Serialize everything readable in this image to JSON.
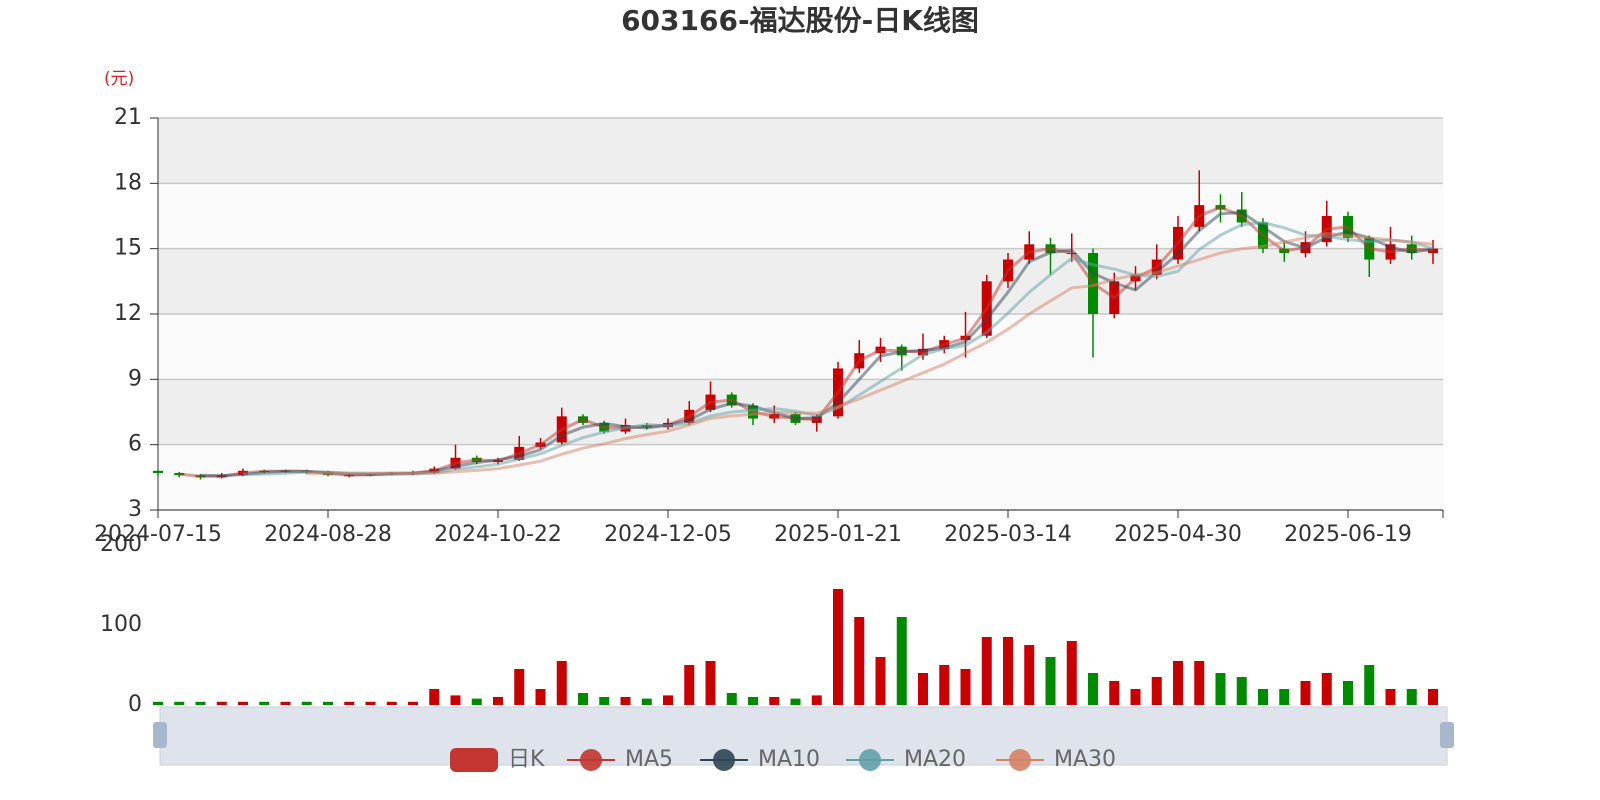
{
  "chart_data": {
    "type": "candlestick",
    "title": "603166-福达股份-日K线图",
    "y_unit": "(元)",
    "categories": [
      "2024-07-15",
      null,
      null,
      null,
      null,
      null,
      null,
      null,
      "2024-08-28",
      null,
      null,
      null,
      null,
      null,
      null,
      null,
      "2024-10-22",
      null,
      null,
      null,
      null,
      null,
      null,
      null,
      "2024-12-05",
      null,
      null,
      null,
      null,
      null,
      null,
      null,
      "2025-01-21",
      null,
      null,
      null,
      null,
      null,
      null,
      null,
      "2025-03-14",
      null,
      null,
      null,
      null,
      null,
      null,
      null,
      "2025-04-30",
      null,
      null,
      null,
      null,
      null,
      null,
      null,
      "2025-06-19",
      null,
      null,
      null,
      null
    ],
    "ylim": [
      3,
      21
    ],
    "yticks": [
      3,
      6,
      9,
      12,
      15,
      18,
      21
    ],
    "grid": true,
    "candles": {
      "name": "日K",
      "color": "#c23531",
      "color_up": "#c80000",
      "color_down": "#008a00",
      "values": [
        [
          4.8,
          4.7,
          4.6,
          4.85
        ],
        [
          4.7,
          4.6,
          4.5,
          4.75
        ],
        [
          4.6,
          4.5,
          4.4,
          4.65
        ],
        [
          4.5,
          4.6,
          4.45,
          4.7
        ],
        [
          4.6,
          4.8,
          4.55,
          4.9
        ],
        [
          4.8,
          4.75,
          4.7,
          4.85
        ],
        [
          4.75,
          4.8,
          4.7,
          4.85
        ],
        [
          4.8,
          4.75,
          4.65,
          4.85
        ],
        [
          4.75,
          4.6,
          4.55,
          4.8
        ],
        [
          4.6,
          4.6,
          4.5,
          4.7
        ],
        [
          4.6,
          4.65,
          4.55,
          4.7
        ],
        [
          4.65,
          4.7,
          4.6,
          4.75
        ],
        [
          4.7,
          4.7,
          4.6,
          4.8
        ],
        [
          4.7,
          4.9,
          4.65,
          5.0
        ],
        [
          4.9,
          5.4,
          4.85,
          6.0
        ],
        [
          5.4,
          5.2,
          5.1,
          5.5
        ],
        [
          5.2,
          5.3,
          5.1,
          5.4
        ],
        [
          5.3,
          5.9,
          5.25,
          6.4
        ],
        [
          5.9,
          6.1,
          5.8,
          6.3
        ],
        [
          6.1,
          7.3,
          6.0,
          7.7
        ],
        [
          7.3,
          7.0,
          6.9,
          7.4
        ],
        [
          7.0,
          6.6,
          6.5,
          7.1
        ],
        [
          6.6,
          6.9,
          6.5,
          7.2
        ],
        [
          6.9,
          6.8,
          6.7,
          7.0
        ],
        [
          6.8,
          7.0,
          6.7,
          7.2
        ],
        [
          7.0,
          7.6,
          6.9,
          8.0
        ],
        [
          7.6,
          8.3,
          7.5,
          8.9
        ],
        [
          8.3,
          7.8,
          7.7,
          8.4
        ],
        [
          7.8,
          7.2,
          6.9,
          7.9
        ],
        [
          7.2,
          7.4,
          7.0,
          7.8
        ],
        [
          7.4,
          7.0,
          6.9,
          7.5
        ],
        [
          7.0,
          7.3,
          6.6,
          7.4
        ],
        [
          7.3,
          9.5,
          7.2,
          9.8
        ],
        [
          9.5,
          10.2,
          9.3,
          10.8
        ],
        [
          10.2,
          10.5,
          9.8,
          10.9
        ],
        [
          10.5,
          10.1,
          9.4,
          10.6
        ],
        [
          10.1,
          10.4,
          9.9,
          11.1
        ],
        [
          10.4,
          10.8,
          10.2,
          11.0
        ],
        [
          10.8,
          11.0,
          10.0,
          12.1
        ],
        [
          11.0,
          13.5,
          10.9,
          13.8
        ],
        [
          13.5,
          14.5,
          13.2,
          14.8
        ],
        [
          14.5,
          15.2,
          14.3,
          15.8
        ],
        [
          15.2,
          14.8,
          13.8,
          15.5
        ],
        [
          14.8,
          14.8,
          14.4,
          15.7
        ],
        [
          14.8,
          12.0,
          10.0,
          15.0
        ],
        [
          12.0,
          13.5,
          11.8,
          13.9
        ],
        [
          13.5,
          13.8,
          13.1,
          14.2
        ],
        [
          13.8,
          14.5,
          13.6,
          15.2
        ],
        [
          14.5,
          16.0,
          14.3,
          16.5
        ],
        [
          16.0,
          17.0,
          15.8,
          18.6
        ],
        [
          17.0,
          16.8,
          16.2,
          17.5
        ],
        [
          16.8,
          16.2,
          16.0,
          17.6
        ],
        [
          16.2,
          15.0,
          14.8,
          16.4
        ],
        [
          15.0,
          14.8,
          14.4,
          15.3
        ],
        [
          14.8,
          15.3,
          14.6,
          15.8
        ],
        [
          15.3,
          16.5,
          15.1,
          17.2
        ],
        [
          16.5,
          15.5,
          15.3,
          16.7
        ],
        [
          15.5,
          14.5,
          13.7,
          15.6
        ],
        [
          14.5,
          15.2,
          14.3,
          16.0
        ],
        [
          15.2,
          14.8,
          14.5,
          15.6
        ],
        [
          14.8,
          15.0,
          14.3,
          15.4
        ]
      ]
    },
    "series": [
      {
        "name": "MA5",
        "color": "#c23531",
        "values": [
          null,
          4.65,
          4.55,
          4.55,
          4.7,
          4.78,
          4.78,
          4.78,
          4.68,
          4.6,
          4.63,
          4.68,
          4.7,
          4.8,
          5.15,
          5.3,
          5.25,
          5.6,
          6.0,
          6.7,
          7.15,
          6.8,
          6.75,
          6.85,
          6.9,
          7.3,
          7.95,
          8.05,
          7.5,
          7.3,
          7.2,
          7.15,
          8.4,
          9.85,
          10.35,
          10.3,
          10.25,
          10.6,
          10.9,
          12.25,
          14.0,
          14.85,
          15.0,
          14.8,
          13.4,
          12.75,
          13.65,
          14.15,
          15.25,
          16.5,
          16.9,
          16.5,
          15.6,
          14.9,
          15.05,
          15.9,
          16.0,
          15.0,
          14.85,
          15.0,
          14.9
        ]
      },
      {
        "name": "MA10",
        "color": "#2f4554",
        "values": [
          null,
          null,
          4.6,
          4.57,
          4.63,
          4.72,
          4.78,
          4.77,
          4.72,
          4.65,
          4.62,
          4.65,
          4.68,
          4.77,
          5.0,
          5.17,
          5.3,
          5.47,
          5.77,
          6.43,
          6.8,
          6.97,
          6.83,
          6.77,
          6.9,
          7.13,
          7.63,
          7.9,
          7.77,
          7.47,
          7.2,
          7.23,
          7.93,
          9.0,
          10.07,
          10.27,
          10.33,
          10.43,
          10.73,
          11.77,
          13.0,
          14.4,
          14.83,
          14.93,
          13.87,
          13.43,
          13.1,
          13.93,
          14.77,
          15.83,
          16.6,
          16.67,
          16.0,
          15.33,
          15.03,
          15.53,
          15.77,
          15.5,
          15.07,
          14.83,
          15.0
        ]
      },
      {
        "name": "MA20",
        "color": "#61a0a8",
        "values": [
          null,
          null,
          null,
          null,
          4.64,
          4.65,
          4.69,
          4.74,
          4.74,
          4.7,
          4.68,
          4.66,
          4.65,
          4.71,
          4.87,
          4.98,
          5.1,
          5.34,
          5.58,
          5.96,
          6.32,
          6.58,
          6.78,
          6.92,
          6.86,
          6.98,
          7.32,
          7.5,
          7.58,
          7.66,
          7.54,
          7.34,
          7.68,
          8.28,
          8.9,
          9.52,
          10.14,
          10.4,
          10.56,
          11.16,
          12.04,
          13.0,
          13.8,
          14.56,
          14.26,
          14.06,
          13.78,
          13.72,
          13.96,
          14.96,
          15.62,
          16.1,
          16.2,
          15.96,
          15.62,
          15.56,
          15.42,
          15.32,
          15.4,
          15.3,
          15.0
        ]
      },
      {
        "name": "MA30",
        "color": "#d48265",
        "values": [
          null,
          null,
          null,
          null,
          null,
          null,
          null,
          4.68,
          4.68,
          4.68,
          4.69,
          4.7,
          4.69,
          4.69,
          4.76,
          4.82,
          4.9,
          5.06,
          5.24,
          5.56,
          5.84,
          6.04,
          6.28,
          6.46,
          6.62,
          6.9,
          7.2,
          7.32,
          7.4,
          7.48,
          7.46,
          7.44,
          7.74,
          8.1,
          8.5,
          8.9,
          9.3,
          9.7,
          10.2,
          10.7,
          11.3,
          12.0,
          12.6,
          13.2,
          13.3,
          13.6,
          13.8,
          13.9,
          14.2,
          14.5,
          14.8,
          15.0,
          15.1,
          15.3,
          15.5,
          15.7,
          15.6,
          15.5,
          15.4,
          15.3,
          15.2
        ]
      }
    ],
    "volume": {
      "ylim": [
        0,
        200
      ],
      "yticks": [
        0,
        100,
        200
      ],
      "values": [
        4,
        4,
        4,
        4,
        4,
        4,
        4,
        4,
        4,
        4,
        4,
        4,
        4,
        20,
        12,
        8,
        10,
        45,
        20,
        55,
        15,
        10,
        10,
        8,
        12,
        50,
        55,
        15,
        10,
        10,
        8,
        12,
        145,
        110,
        60,
        110,
        40,
        50,
        45,
        85,
        85,
        75,
        60,
        80,
        40,
        30,
        20,
        35,
        55,
        55,
        40,
        35,
        20,
        20,
        30,
        40,
        30,
        50,
        20,
        20,
        20
      ]
    }
  }
}
